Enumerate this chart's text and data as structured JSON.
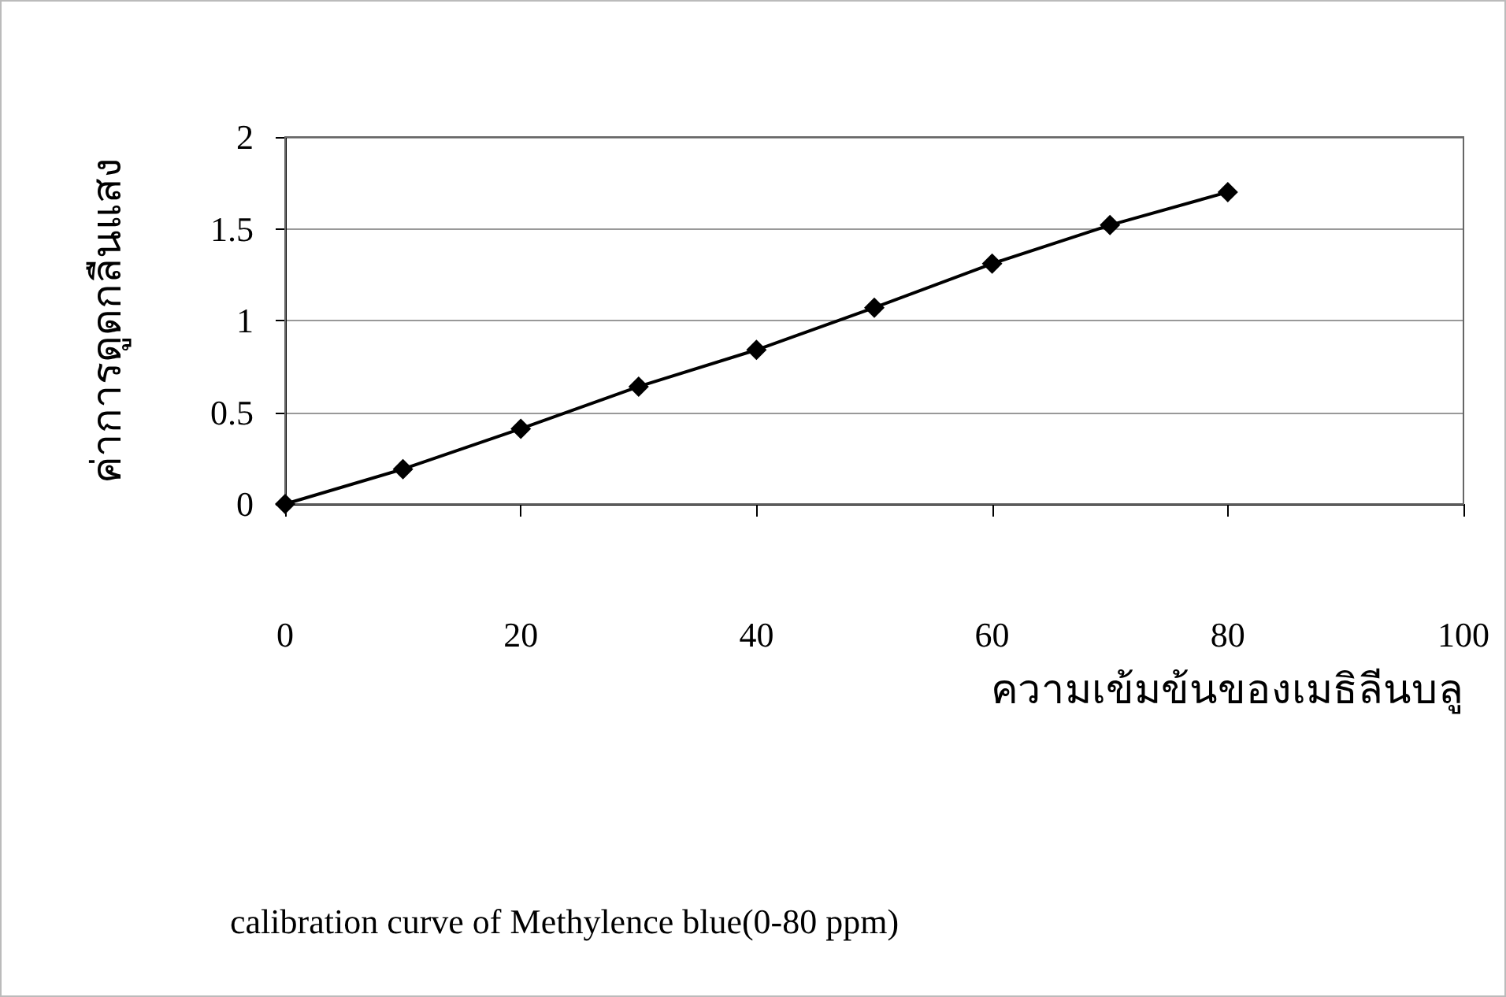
{
  "chart_data": {
    "type": "line",
    "title": "calibration curve of Methylence blue(0-80 ppm)",
    "xlabel": "ความเข้มข้นของเมธิลีนบลู",
    "ylabel": "ค่าการดูดกลืนแสง",
    "series": [
      {
        "color": "#000000",
        "x": [
          0,
          10,
          20,
          30,
          40,
          50,
          60,
          70,
          80
        ],
        "values": [
          0,
          0.19,
          0.41,
          0.64,
          0.84,
          1.07,
          1.31,
          1.52,
          1.7
        ]
      }
    ],
    "xlim": [
      0,
      100
    ],
    "xticks": [
      0,
      20,
      40,
      60,
      80,
      100
    ],
    "ylim": [
      0,
      2
    ],
    "yticks": [
      0,
      0.5,
      1,
      1.5,
      2
    ],
    "grid": "y",
    "marker": "diamond",
    "line_style": "solid"
  }
}
